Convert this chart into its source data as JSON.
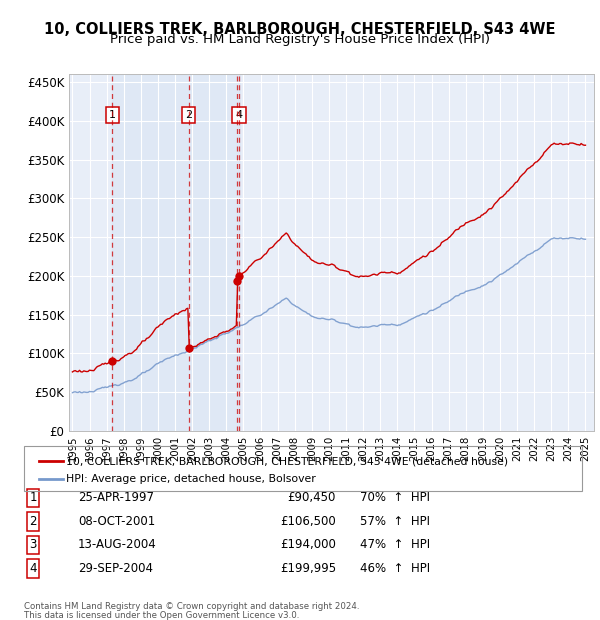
{
  "title": "10, COLLIERS TREK, BARLBOROUGH, CHESTERFIELD, S43 4WE",
  "subtitle": "Price paid vs. HM Land Registry's House Price Index (HPI)",
  "ylim": [
    0,
    460000
  ],
  "yticks": [
    0,
    50000,
    100000,
    150000,
    200000,
    250000,
    300000,
    350000,
    400000,
    450000
  ],
  "ytick_labels": [
    "£0",
    "£50K",
    "£100K",
    "£150K",
    "£200K",
    "£250K",
    "£300K",
    "£350K",
    "£400K",
    "£450K"
  ],
  "background_color": "#ffffff",
  "plot_bg_color": "#e8eef8",
  "grid_color": "#ffffff",
  "hpi_line_color": "#7799cc",
  "price_line_color": "#cc0000",
  "sale_marker_color": "#cc0000",
  "transactions": [
    {
      "num": 1,
      "date": "25-APR-1997",
      "price": 90450,
      "hpi_pct": "70%"
    },
    {
      "num": 2,
      "date": "08-OCT-2001",
      "price": 106500,
      "hpi_pct": "57%"
    },
    {
      "num": 3,
      "date": "13-AUG-2004",
      "price": 194000,
      "hpi_pct": "47%"
    },
    {
      "num": 4,
      "date": "29-SEP-2004",
      "price": 199995,
      "hpi_pct": "46%"
    }
  ],
  "legend_line1": "10, COLLIERS TREK, BARLBOROUGH, CHESTERFIELD, S43 4WE (detached house)",
  "legend_line2": "HPI: Average price, detached house, Bolsover",
  "footer1": "Contains HM Land Registry data © Crown copyright and database right 2024.",
  "footer2": "This data is licensed under the Open Government Licence v3.0.",
  "x_start_year": 1995,
  "x_end_year": 2025
}
